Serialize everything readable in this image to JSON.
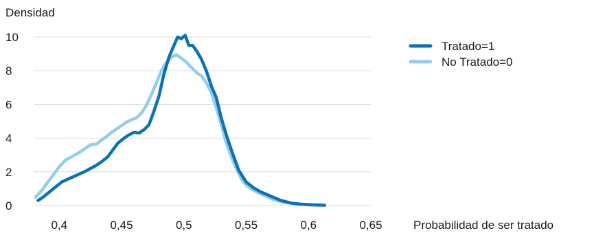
{
  "chart_data": {
    "type": "line",
    "title": "",
    "ylabel": "Densidad",
    "xlabel": "Probabilidad de ser tratado",
    "xlim": [
      0.38,
      0.65
    ],
    "ylim": [
      0,
      10
    ],
    "x_ticks": [
      0.4,
      0.45,
      0.5,
      0.55,
      0.6,
      0.65
    ],
    "x_tick_labels": [
      "0,4",
      "0,45",
      "0,5",
      "0,55",
      "0,6",
      "0,65"
    ],
    "y_ticks": [
      0,
      2,
      4,
      6,
      8,
      10
    ],
    "y_tick_labels": [
      "0",
      "2",
      "4",
      "6",
      "8",
      "10"
    ],
    "grid": "horizontal",
    "legend_position": "right",
    "series": [
      {
        "name": "Tratado=1",
        "color": "#0a72b5",
        "points": [
          [
            0.383,
            0.3
          ],
          [
            0.387,
            0.5
          ],
          [
            0.392,
            0.8
          ],
          [
            0.397,
            1.1
          ],
          [
            0.402,
            1.4
          ],
          [
            0.408,
            1.6
          ],
          [
            0.414,
            1.8
          ],
          [
            0.42,
            2.0
          ],
          [
            0.425,
            2.2
          ],
          [
            0.43,
            2.4
          ],
          [
            0.434,
            2.6
          ],
          [
            0.439,
            2.9
          ],
          [
            0.443,
            3.3
          ],
          [
            0.447,
            3.7
          ],
          [
            0.452,
            4.0
          ],
          [
            0.456,
            4.2
          ],
          [
            0.46,
            4.35
          ],
          [
            0.464,
            4.3
          ],
          [
            0.468,
            4.5
          ],
          [
            0.472,
            4.8
          ],
          [
            0.476,
            5.6
          ],
          [
            0.48,
            6.5
          ],
          [
            0.484,
            7.8
          ],
          [
            0.488,
            8.8
          ],
          [
            0.492,
            9.5
          ],
          [
            0.495,
            10.0
          ],
          [
            0.498,
            9.9
          ],
          [
            0.501,
            10.1
          ],
          [
            0.504,
            9.5
          ],
          [
            0.507,
            9.5
          ],
          [
            0.51,
            9.2
          ],
          [
            0.514,
            8.7
          ],
          [
            0.518,
            8.0
          ],
          [
            0.522,
            7.1
          ],
          [
            0.526,
            6.4
          ],
          [
            0.53,
            5.2
          ],
          [
            0.534,
            4.2
          ],
          [
            0.539,
            3.1
          ],
          [
            0.544,
            2.1
          ],
          [
            0.55,
            1.4
          ],
          [
            0.556,
            1.05
          ],
          [
            0.562,
            0.8
          ],
          [
            0.57,
            0.55
          ],
          [
            0.578,
            0.3
          ],
          [
            0.586,
            0.15
          ],
          [
            0.594,
            0.08
          ],
          [
            0.603,
            0.04
          ],
          [
            0.613,
            0.02
          ]
        ]
      },
      {
        "name": "No Tratado=0",
        "color": "#94cdeb",
        "points": [
          [
            0.381,
            0.5
          ],
          [
            0.386,
            0.9
          ],
          [
            0.39,
            1.3
          ],
          [
            0.395,
            1.8
          ],
          [
            0.4,
            2.3
          ],
          [
            0.405,
            2.7
          ],
          [
            0.41,
            2.9
          ],
          [
            0.415,
            3.1
          ],
          [
            0.42,
            3.35
          ],
          [
            0.425,
            3.6
          ],
          [
            0.43,
            3.65
          ],
          [
            0.434,
            3.9
          ],
          [
            0.438,
            4.1
          ],
          [
            0.442,
            4.35
          ],
          [
            0.446,
            4.55
          ],
          [
            0.45,
            4.75
          ],
          [
            0.454,
            4.95
          ],
          [
            0.458,
            5.1
          ],
          [
            0.462,
            5.2
          ],
          [
            0.466,
            5.5
          ],
          [
            0.47,
            5.95
          ],
          [
            0.474,
            6.6
          ],
          [
            0.478,
            7.3
          ],
          [
            0.482,
            8.0
          ],
          [
            0.486,
            8.5
          ],
          [
            0.49,
            8.8
          ],
          [
            0.494,
            8.95
          ],
          [
            0.498,
            8.75
          ],
          [
            0.502,
            8.5
          ],
          [
            0.506,
            8.2
          ],
          [
            0.51,
            7.9
          ],
          [
            0.514,
            7.7
          ],
          [
            0.518,
            7.3
          ],
          [
            0.522,
            6.7
          ],
          [
            0.526,
            5.8
          ],
          [
            0.53,
            4.8
          ],
          [
            0.534,
            3.7
          ],
          [
            0.538,
            2.9
          ],
          [
            0.542,
            2.2
          ],
          [
            0.546,
            1.6
          ],
          [
            0.55,
            1.2
          ],
          [
            0.555,
            0.95
          ],
          [
            0.56,
            0.75
          ],
          [
            0.566,
            0.55
          ],
          [
            0.572,
            0.35
          ],
          [
            0.58,
            0.2
          ],
          [
            0.59,
            0.1
          ],
          [
            0.6,
            0.06
          ],
          [
            0.61,
            0.04
          ]
        ]
      }
    ]
  }
}
